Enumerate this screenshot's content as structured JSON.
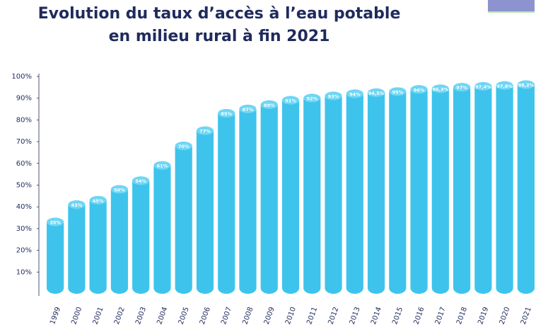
{
  "chart_data": {
    "type": "bar",
    "title": "Evolution du taux d’accès à l’eau potable",
    "subtitle": "en milieu rural à fin 2021",
    "categories": [
      "1999",
      "2000",
      "2001",
      "2002",
      "2003",
      "2004",
      "2005",
      "2006",
      "2007",
      "2008",
      "2009",
      "2010",
      "2011",
      "2012",
      "2013",
      "2014",
      "2015",
      "2016",
      "2017",
      "2018",
      "2019",
      "2020",
      "2021"
    ],
    "values": [
      35,
      43,
      45,
      50,
      54,
      61,
      70,
      77,
      85,
      87,
      89,
      91,
      92,
      93,
      94,
      94.5,
      95,
      96,
      96.3,
      97,
      97.4,
      97.8,
      98.2
    ],
    "value_labels": [
      "35%",
      "43%",
      "45%",
      "50%",
      "54%",
      "61%",
      "70%",
      "77%",
      "85%",
      "87%",
      "89%",
      "91%",
      "92%",
      "93%",
      "94%",
      "94,5%",
      "95%",
      "96%",
      "96,3%",
      "97%",
      "97,4%",
      "97,8%",
      "98,2%"
    ],
    "color": "#3ec4ec",
    "ylim": [
      0,
      100
    ],
    "yticks": [
      {
        "value": 10,
        "label": "10%"
      },
      {
        "value": 20,
        "label": "20%"
      },
      {
        "value": 30,
        "label": "30%"
      },
      {
        "value": 40,
        "label": "40%"
      },
      {
        "value": 50,
        "label": "50%"
      },
      {
        "value": 60,
        "label": "60%"
      },
      {
        "value": 70,
        "label": "70%"
      },
      {
        "value": 80,
        "label": "80%"
      },
      {
        "value": 90,
        "label": "90%"
      },
      {
        "value": 100,
        "label": "100%"
      }
    ],
    "grid": false
  }
}
